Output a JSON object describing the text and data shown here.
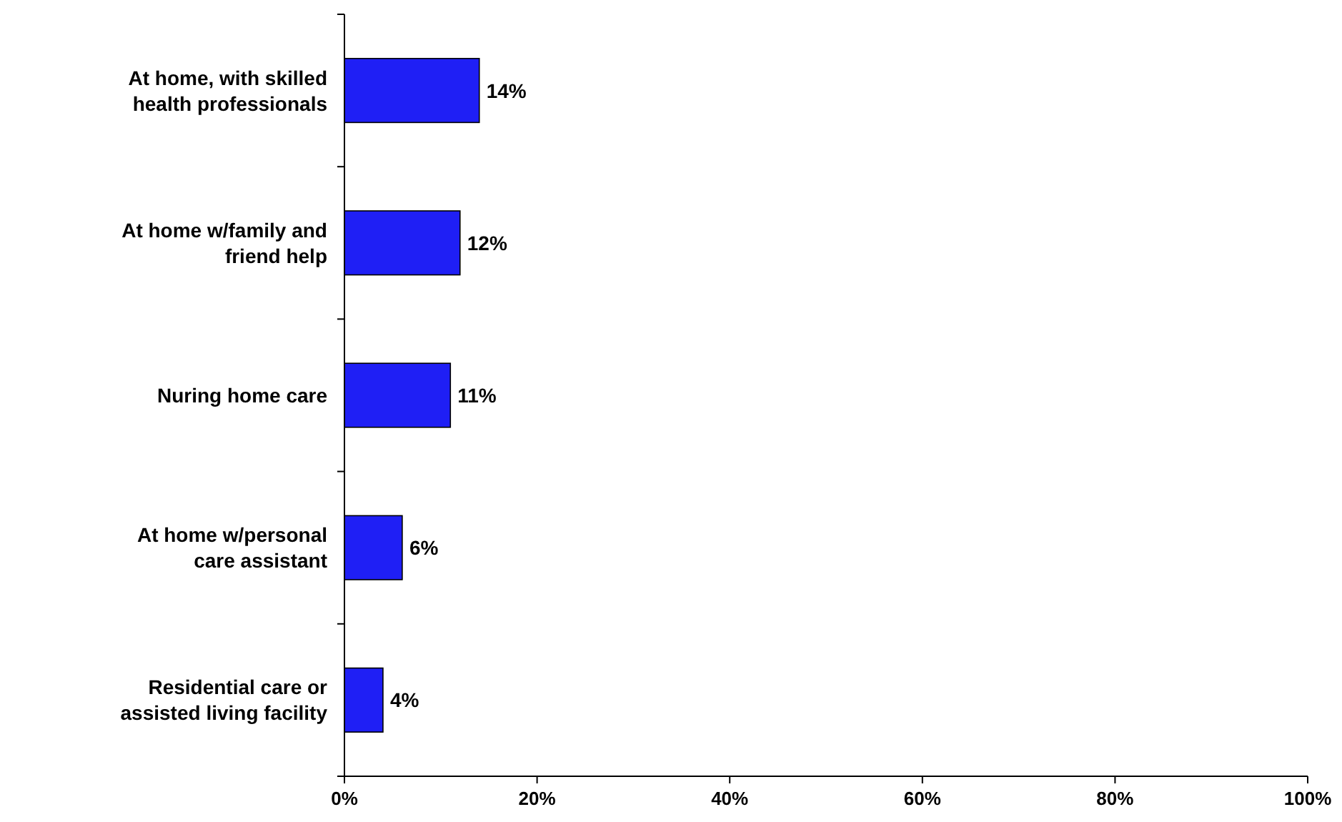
{
  "chart_data": {
    "type": "bar",
    "orientation": "horizontal",
    "categories": [
      "At home, with skilled health professionals",
      "At home w/family and friend help",
      "Nuring home care",
      "At home w/personal care assistant",
      "Residential care or assisted living facility"
    ],
    "values": [
      14,
      12,
      11,
      6,
      4
    ],
    "value_labels": [
      "14%",
      "12%",
      "11%",
      "6%",
      "4%"
    ],
    "color": "#1f1ff5",
    "xlim": [
      0,
      100
    ],
    "xticks": [
      {
        "value": 0,
        "label": "0%"
      },
      {
        "value": 20,
        "label": "20%"
      },
      {
        "value": 40,
        "label": "40%"
      },
      {
        "value": 60,
        "label": "60%"
      },
      {
        "value": 80,
        "label": "80%"
      },
      {
        "value": 100,
        "label": "100%"
      }
    ],
    "grid": false
  }
}
